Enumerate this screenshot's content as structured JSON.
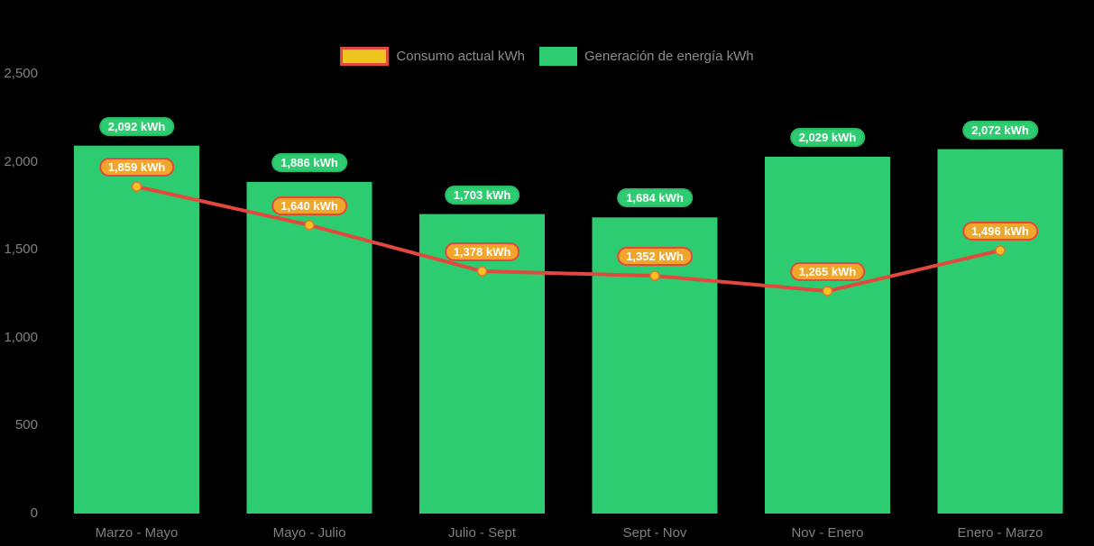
{
  "chart_data": {
    "type": "bar",
    "subtype": "bar-with-line-overlay",
    "categories": [
      "Marzo - Mayo",
      "Mayo - Julio",
      "Julio - Sept",
      "Sept - Nov",
      "Nov - Enero",
      "Enero - Marzo"
    ],
    "series": [
      {
        "name": "Consumo actual kWh",
        "type": "line",
        "values": [
          1859,
          1640,
          1378,
          1352,
          1265,
          1496
        ]
      },
      {
        "name": "Generación de energía kWh",
        "type": "bar",
        "values": [
          2092,
          1886,
          1703,
          1684,
          2029,
          2072
        ]
      }
    ],
    "value_label_suffix": " kWh",
    "y_axis": {
      "min": 0,
      "max": 2500,
      "tick_values": [
        0,
        500,
        1000,
        1500,
        2000,
        2500
      ],
      "tick_labels": [
        "0",
        "500",
        "1,000",
        "1,500",
        "2,000",
        "2,500"
      ]
    },
    "grid": false,
    "legend_position": "top"
  },
  "colors": {
    "background": "#000000",
    "bar_green": "#2ecc71",
    "bar_label_bg": "#2ecc71",
    "bar_label_border": "#29bd68",
    "line_red": "#e2483d",
    "marker_yellow": "#f5c21e",
    "marker_border": "#e2703a",
    "consumo_label_bg": "#f0a62b",
    "consumo_label_border": "#e2483d",
    "legend_swatch_yellow": "#eec51f",
    "axis_text": "#808080",
    "legend_text": "#8c8c8c",
    "label_text": "#ffffff"
  }
}
